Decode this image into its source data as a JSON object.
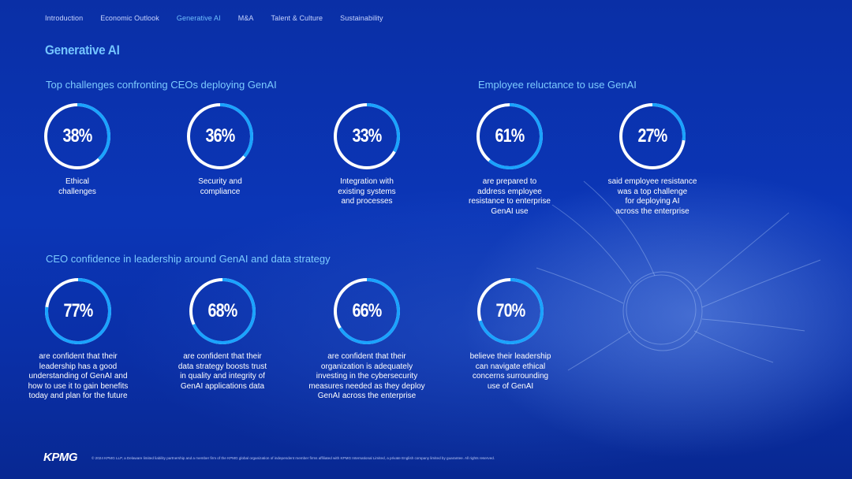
{
  "nav": {
    "items": [
      {
        "label": "Introduction",
        "active": false
      },
      {
        "label": "Economic Outlook",
        "active": false
      },
      {
        "label": "Generative AI",
        "active": true
      },
      {
        "label": "M&A",
        "active": false
      },
      {
        "label": "Talent & Culture",
        "active": false
      },
      {
        "label": "Sustainability",
        "active": false
      }
    ]
  },
  "page_title": "Generative AI",
  "sections": {
    "challenges": "Top challenges confronting CEOs deploying GenAI",
    "reluctance": "Employee reluctance to use GenAI",
    "confidence": "CEO confidence in leadership around GenAI and data strategy"
  },
  "stats": {
    "ethical": {
      "value": "38%",
      "fraction": 0.38,
      "caption": "Ethical\nchallenges"
    },
    "security": {
      "value": "36%",
      "fraction": 0.36,
      "caption": "Security and\ncompliance"
    },
    "integration": {
      "value": "33%",
      "fraction": 0.33,
      "caption": "Integration with\nexisting systems\nand processes"
    },
    "prepared": {
      "value": "61%",
      "fraction": 0.61,
      "caption": "are prepared to\naddress employee\nresistance to enterprise\nGenAI use"
    },
    "resistance": {
      "value": "27%",
      "fraction": 0.27,
      "caption": "said employee resistance\nwas a top challenge\nfor deploying AI\nacross the enterprise"
    },
    "understanding": {
      "value": "77%",
      "fraction": 0.77,
      "caption": "are confident that their\nleadership has a good\nunderstanding of GenAI and\nhow to use it to gain benefits\ntoday and plan for the future"
    },
    "data_strategy": {
      "value": "68%",
      "fraction": 0.68,
      "caption": "are confident that their\ndata strategy boosts trust\nin quality and integrity of\nGenAI applications data"
    },
    "cybersecurity": {
      "value": "66%",
      "fraction": 0.66,
      "caption": "are confident that their\norganization is adequately\ninvesting in the cybersecurity\nmeasures needed as they deploy\nGenAI across the enterprise"
    },
    "ethical_concerns": {
      "value": "70%",
      "fraction": 0.7,
      "caption": "believe their leadership\ncan navigate ethical\nconcerns surrounding\nuse of GenAI"
    }
  },
  "footer": {
    "logo": "KPMG",
    "legal": "© 2024 KPMG LLP, a Delaware limited liability partnership and a member firm of the KPMG global organization of independent member firms affiliated with KPMG International Limited, a private English company limited by guarantee. All rights reserved."
  },
  "colors": {
    "accent": "#1aa3ff",
    "ring_track": "#ffffff",
    "title": "#74c5ff",
    "background": "#0b36b7"
  }
}
